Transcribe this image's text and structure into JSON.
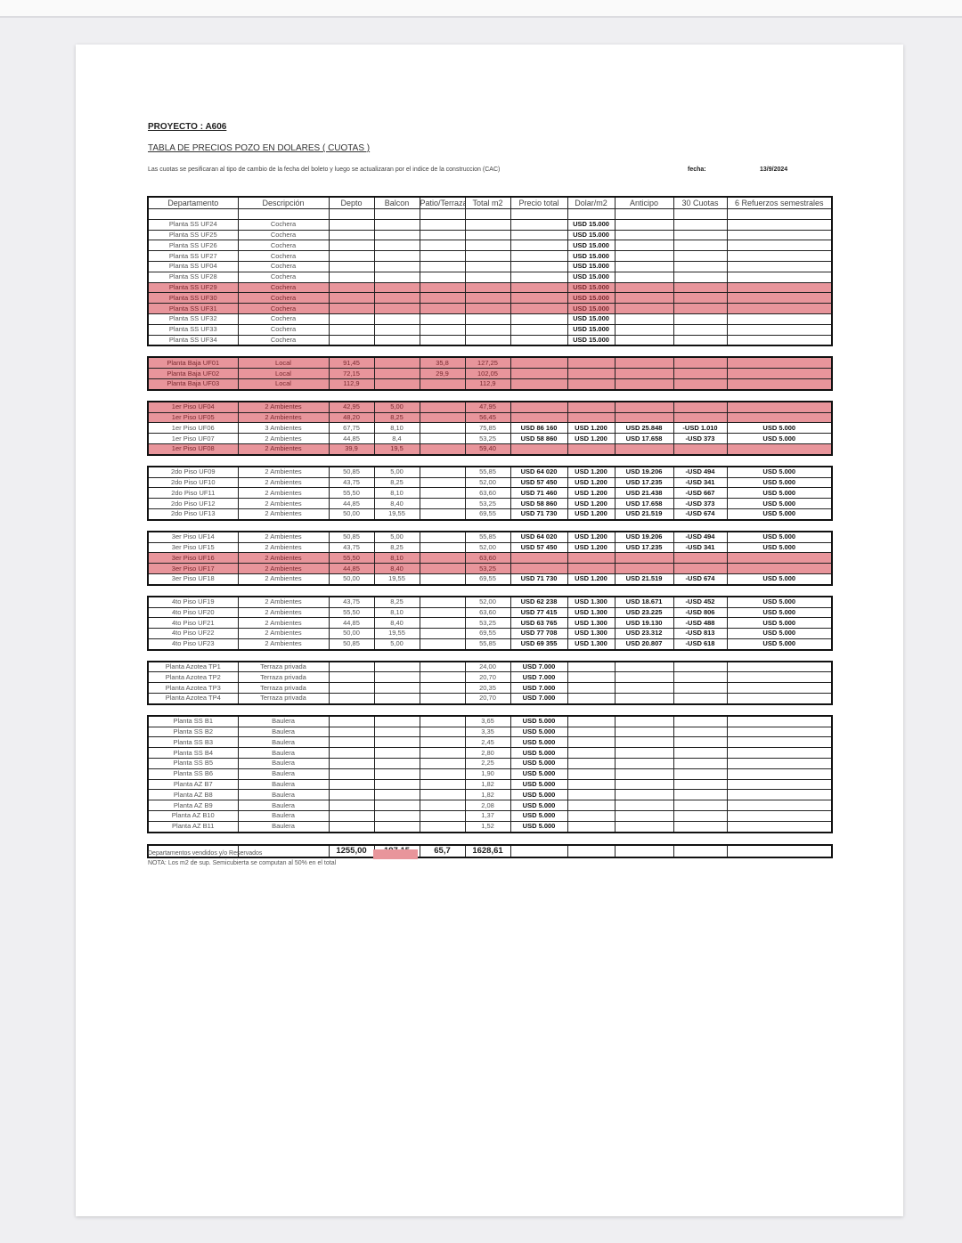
{
  "document": {
    "project": "PROYECTO : A606",
    "subtitle": "TABLA DE PRECIOS POZO EN DOLARES ( CUOTAS )",
    "disclaimer": "Las cuotas se pesificaran al tipo de cambio de la fecha del boleto y luego se actualizaran por el indice de la construccion (CAC)",
    "date_label": "fecha:",
    "date_value": "13/9/2024",
    "legend_label": "Departamentos vendidos y/o Reservados",
    "note": "NOTA: Los m2 de sup. Semicubierta se computan al 50% en el total",
    "sold_color": "#e8959b"
  },
  "table": {
    "headers": [
      "Departamento",
      "Descripción",
      "Depto",
      "Balcon",
      "Patio/Terraza",
      "Total m2",
      "Precio total",
      "Dolar/m2",
      "Anticipo",
      "30 Cuotas",
      "6 Refuerzos semestrales"
    ],
    "groups": [
      {
        "rows": [
          {
            "sold": false,
            "cells": [
              "",
              "",
              "",
              "",
              "",
              "",
              "",
              "",
              "",
              "",
              ""
            ]
          },
          {
            "sold": false,
            "cells": [
              "Planta SS UF24",
              "Cochera",
              "",
              "",
              "",
              "",
              "",
              "USD 15.000",
              "",
              "",
              ""
            ]
          },
          {
            "sold": false,
            "cells": [
              "Planta SS UF25",
              "Cochera",
              "",
              "",
              "",
              "",
              "",
              "USD 15.000",
              "",
              "",
              ""
            ]
          },
          {
            "sold": false,
            "cells": [
              "Planta SS UF26",
              "Cochera",
              "",
              "",
              "",
              "",
              "",
              "USD 15.000",
              "",
              "",
              ""
            ]
          },
          {
            "sold": false,
            "cells": [
              "Planta SS UF27",
              "Cochera",
              "",
              "",
              "",
              "",
              "",
              "USD 15.000",
              "",
              "",
              ""
            ]
          },
          {
            "sold": false,
            "cells": [
              "Planta SS UF04",
              "Cochera",
              "",
              "",
              "",
              "",
              "",
              "USD 15.000",
              "",
              "",
              ""
            ]
          },
          {
            "sold": false,
            "cells": [
              "Planta SS UF28",
              "Cochera",
              "",
              "",
              "",
              "",
              "",
              "USD 15.000",
              "",
              "",
              ""
            ]
          },
          {
            "sold": true,
            "cells": [
              "Planta SS UF29",
              "Cochera",
              "",
              "",
              "",
              "",
              "",
              "USD 15.000",
              "",
              "",
              ""
            ]
          },
          {
            "sold": true,
            "cells": [
              "Planta SS UF30",
              "Cochera",
              "",
              "",
              "",
              "",
              "",
              "USD 15.000",
              "",
              "",
              ""
            ]
          },
          {
            "sold": true,
            "cells": [
              "Planta SS UF31",
              "Cochera",
              "",
              "",
              "",
              "",
              "",
              "USD 15.000",
              "",
              "",
              ""
            ]
          },
          {
            "sold": false,
            "cells": [
              "Planta SS UF32",
              "Cochera",
              "",
              "",
              "",
              "",
              "",
              "USD 15.000",
              "",
              "",
              ""
            ]
          },
          {
            "sold": false,
            "cells": [
              "Planta SS UF33",
              "Cochera",
              "",
              "",
              "",
              "",
              "",
              "USD 15.000",
              "",
              "",
              ""
            ]
          },
          {
            "sold": false,
            "cells": [
              "Planta SS UF34",
              "Cochera",
              "",
              "",
              "",
              "",
              "",
              "USD 15.000",
              "",
              "",
              ""
            ]
          }
        ]
      },
      {
        "rows": [
          {
            "sold": true,
            "cells": [
              "Planta Baja UF01",
              "Local",
              "91,45",
              "",
              "35,8",
              "127,25",
              "",
              "",
              "",
              "",
              ""
            ]
          },
          {
            "sold": true,
            "cells": [
              "Planta Baja UF02",
              "Local",
              "72,15",
              "",
              "29,9",
              "102,05",
              "",
              "",
              "",
              "",
              ""
            ]
          },
          {
            "sold": true,
            "cells": [
              "Planta Baja UF03",
              "Local",
              "112,9",
              "",
              "",
              "112,9",
              "",
              "",
              "",
              "",
              ""
            ]
          }
        ]
      },
      {
        "rows": [
          {
            "sold": true,
            "cells": [
              "1er Piso UF04",
              "2 Ambientes",
              "42,95",
              "5,00",
              "",
              "47,95",
              "",
              "",
              "",
              "",
              ""
            ]
          },
          {
            "sold": true,
            "cells": [
              "1er Piso UF05",
              "2 Ambientes",
              "48,20",
              "8,25",
              "",
              "56,45",
              "",
              "",
              "",
              "",
              ""
            ]
          },
          {
            "sold": false,
            "cells": [
              "1er Piso UF06",
              "3 Ambientes",
              "67,75",
              "8,10",
              "",
              "75,85",
              "USD 86 160",
              "USD 1.200",
              "USD 25.848",
              "-USD 1.010",
              "USD 5.000"
            ]
          },
          {
            "sold": false,
            "cells": [
              "1er Piso UF07",
              "2 Ambientes",
              "44,85",
              "8,4",
              "",
              "53,25",
              "USD 58 860",
              "USD 1.200",
              "USD 17.658",
              "-USD 373",
              "USD 5.000"
            ]
          },
          {
            "sold": true,
            "cells": [
              "1er Piso UF08",
              "2 Ambientes",
              "39,9",
              "19,5",
              "",
              "59,40",
              "",
              "",
              "",
              "",
              ""
            ]
          }
        ]
      },
      {
        "rows": [
          {
            "sold": false,
            "cells": [
              "2do Piso UF09",
              "2 Ambientes",
              "50,85",
              "5,00",
              "",
              "55,85",
              "USD 64 020",
              "USD 1.200",
              "USD 19.206",
              "-USD 494",
              "USD 5.000"
            ]
          },
          {
            "sold": false,
            "cells": [
              "2do Piso UF10",
              "2 Ambientes",
              "43,75",
              "8,25",
              "",
              "52,00",
              "USD 57 450",
              "USD 1.200",
              "USD 17.235",
              "-USD 341",
              "USD 5.000"
            ]
          },
          {
            "sold": false,
            "cells": [
              "2do Piso UF11",
              "2 Ambientes",
              "55,50",
              "8,10",
              "",
              "63,60",
              "USD 71 460",
              "USD 1.200",
              "USD 21.438",
              "-USD 667",
              "USD 5.000"
            ]
          },
          {
            "sold": false,
            "cells": [
              "2do Piso UF12",
              "2 Ambientes",
              "44,85",
              "8,40",
              "",
              "53,25",
              "USD 58 860",
              "USD 1.200",
              "USD 17.658",
              "-USD 373",
              "USD 5.000"
            ]
          },
          {
            "sold": false,
            "cells": [
              "2do Piso UF13",
              "2 Ambientes",
              "50,00",
              "19,55",
              "",
              "69,55",
              "USD 71 730",
              "USD 1.200",
              "USD 21.519",
              "-USD 674",
              "USD 5.000"
            ]
          }
        ]
      },
      {
        "rows": [
          {
            "sold": false,
            "cells": [
              "3er Piso UF14",
              "2 Ambientes",
              "50,85",
              "5,00",
              "",
              "55,85",
              "USD 64 020",
              "USD 1.200",
              "USD 19.206",
              "-USD 494",
              "USD 5.000"
            ]
          },
          {
            "sold": false,
            "cells": [
              "3er Piso UF15",
              "2 Ambientes",
              "43,75",
              "8,25",
              "",
              "52,00",
              "USD 57 450",
              "USD 1.200",
              "USD 17.235",
              "-USD 341",
              "USD 5.000"
            ]
          },
          {
            "sold": true,
            "cells": [
              "3er Piso UF16",
              "2 Ambientes",
              "55,50",
              "8,10",
              "",
              "63,60",
              "",
              "",
              "",
              "",
              ""
            ]
          },
          {
            "sold": true,
            "cells": [
              "3er Piso UF17",
              "2 Ambientes",
              "44,85",
              "8,40",
              "",
              "53,25",
              "",
              "",
              "",
              "",
              ""
            ]
          },
          {
            "sold": false,
            "cells": [
              "3er Piso UF18",
              "2 Ambientes",
              "50,00",
              "19,55",
              "",
              "69,55",
              "USD 71 730",
              "USD 1.200",
              "USD 21.519",
              "-USD 674",
              "USD 5.000"
            ]
          }
        ]
      },
      {
        "rows": [
          {
            "sold": false,
            "cells": [
              "4to Piso UF19",
              "2 Ambientes",
              "43,75",
              "8,25",
              "",
              "52,00",
              "USD 62 238",
              "USD 1.300",
              "USD 18.671",
              "-USD 452",
              "USD 5.000"
            ]
          },
          {
            "sold": false,
            "cells": [
              "4to Piso UF20",
              "2 Ambientes",
              "55,50",
              "8,10",
              "",
              "63,60",
              "USD 77 415",
              "USD 1.300",
              "USD 23.225",
              "-USD 806",
              "USD 5.000"
            ]
          },
          {
            "sold": false,
            "cells": [
              "4to Piso UF21",
              "2 Ambientes",
              "44,85",
              "8,40",
              "",
              "53,25",
              "USD 63 765",
              "USD 1.300",
              "USD 19.130",
              "-USD 488",
              "USD 5.000"
            ]
          },
          {
            "sold": false,
            "cells": [
              "4to Piso UF22",
              "2 Ambientes",
              "50,00",
              "19,55",
              "",
              "69,55",
              "USD 77 708",
              "USD 1.300",
              "USD 23.312",
              "-USD 813",
              "USD 5.000"
            ]
          },
          {
            "sold": false,
            "cells": [
              "4to Piso UF23",
              "2 Ambientes",
              "50,85",
              "5,00",
              "",
              "55,85",
              "USD 69 355",
              "USD 1.300",
              "USD 20.807",
              "-USD 618",
              "USD 5.000"
            ]
          }
        ]
      },
      {
        "rows": [
          {
            "sold": false,
            "cells": [
              "Planta Azotea TP1",
              "Terraza privada",
              "",
              "",
              "",
              "24,00",
              "USD 7.000",
              "",
              "",
              "",
              ""
            ]
          },
          {
            "sold": false,
            "cells": [
              "Planta Azotea TP2",
              "Terraza privada",
              "",
              "",
              "",
              "20,70",
              "USD 7.000",
              "",
              "",
              "",
              ""
            ]
          },
          {
            "sold": false,
            "cells": [
              "Planta Azotea TP3",
              "Terraza privada",
              "",
              "",
              "",
              "20,35",
              "USD 7.000",
              "",
              "",
              "",
              ""
            ]
          },
          {
            "sold": false,
            "cells": [
              "Planta Azotea TP4",
              "Terraza privada",
              "",
              "",
              "",
              "20,70",
              "USD 7.000",
              "",
              "",
              "",
              ""
            ]
          }
        ]
      },
      {
        "rows": [
          {
            "sold": false,
            "cells": [
              "Planta SS B1",
              "Baulera",
              "",
              "",
              "",
              "3,65",
              "USD 5.000",
              "",
              "",
              "",
              ""
            ]
          },
          {
            "sold": false,
            "cells": [
              "Planta SS B2",
              "Baulera",
              "",
              "",
              "",
              "3,35",
              "USD 5.000",
              "",
              "",
              "",
              ""
            ]
          },
          {
            "sold": false,
            "cells": [
              "Planta SS B3",
              "Baulera",
              "",
              "",
              "",
              "2,45",
              "USD 5.000",
              "",
              "",
              "",
              ""
            ]
          },
          {
            "sold": false,
            "cells": [
              "Planta SS B4",
              "Baulera",
              "",
              "",
              "",
              "2,80",
              "USD 5.000",
              "",
              "",
              "",
              ""
            ]
          },
          {
            "sold": false,
            "cells": [
              "Planta SS B5",
              "Baulera",
              "",
              "",
              "",
              "2,25",
              "USD 5.000",
              "",
              "",
              "",
              ""
            ]
          },
          {
            "sold": false,
            "cells": [
              "Planta SS B6",
              "Baulera",
              "",
              "",
              "",
              "1,90",
              "USD 5.000",
              "",
              "",
              "",
              ""
            ]
          },
          {
            "sold": false,
            "cells": [
              "Planta AZ B7",
              "Baulera",
              "",
              "",
              "",
              "1,82",
              "USD 5.000",
              "",
              "",
              "",
              ""
            ]
          },
          {
            "sold": false,
            "cells": [
              "Planta AZ B8",
              "Baulera",
              "",
              "",
              "",
              "1,82",
              "USD 5.000",
              "",
              "",
              "",
              ""
            ]
          },
          {
            "sold": false,
            "cells": [
              "Planta AZ B9",
              "Baulera",
              "",
              "",
              "",
              "2,08",
              "USD 5.000",
              "",
              "",
              "",
              ""
            ]
          },
          {
            "sold": false,
            "cells": [
              "Planta AZ B10",
              "Baulera",
              "",
              "",
              "",
              "1,37",
              "USD 5.000",
              "",
              "",
              "",
              ""
            ]
          },
          {
            "sold": false,
            "cells": [
              "Planta AZ B11",
              "Baulera",
              "",
              "",
              "",
              "1,52",
              "USD 5.000",
              "",
              "",
              "",
              ""
            ]
          }
        ]
      }
    ],
    "totals": [
      "",
      "",
      "1255,00",
      "197,15",
      "65,7",
      "1628,61",
      "",
      "",
      "",
      "",
      ""
    ]
  }
}
